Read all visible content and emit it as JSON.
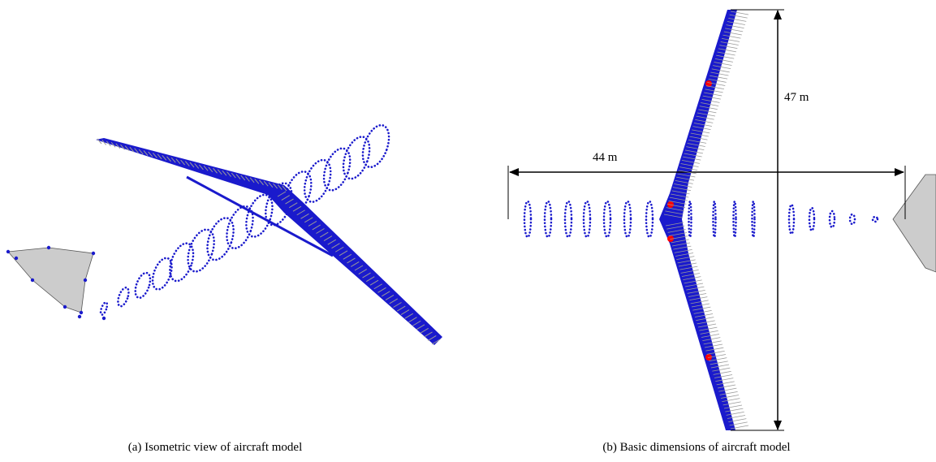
{
  "figure": {
    "panel_a": {
      "caption": "(a) Isometric view of aircraft model"
    },
    "panel_b": {
      "caption": "(b) Basic dimensions of aircraft model",
      "length_label": "44 m",
      "span_label": "47 m"
    }
  }
}
